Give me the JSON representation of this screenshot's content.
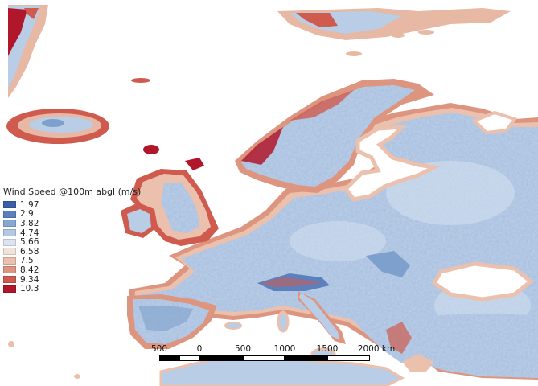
{
  "legend": {
    "title": "Wind Speed @100m abgl (m/s)",
    "items": [
      {
        "label": "1.97",
        "color": "#3a5fa8"
      },
      {
        "label": "2.9",
        "color": "#5b80bd"
      },
      {
        "label": "3.82",
        "color": "#86a7d1"
      },
      {
        "label": "4.74",
        "color": "#b3c9e3"
      },
      {
        "label": "5.66",
        "color": "#dbe4ef"
      },
      {
        "label": "6.58",
        "color": "#f1e3dc"
      },
      {
        "label": "7.5",
        "color": "#ebc0ad"
      },
      {
        "label": "8.42",
        "color": "#dd9580"
      },
      {
        "label": "9.34",
        "color": "#cf5b4f"
      },
      {
        "label": "10.3",
        "color": "#b0172a"
      }
    ]
  },
  "scalebar": {
    "labels": [
      "500",
      "0",
      "500",
      "1000",
      "1500",
      "2000 km"
    ]
  },
  "colors": {
    "land_base": "#b9cde6",
    "land_light": "#d6e2f0",
    "land_dark": "#7ea0cc",
    "coast_mid": "#e7b8a3",
    "coast_high": "#d9816e",
    "coast_peak": "#b0172a"
  }
}
